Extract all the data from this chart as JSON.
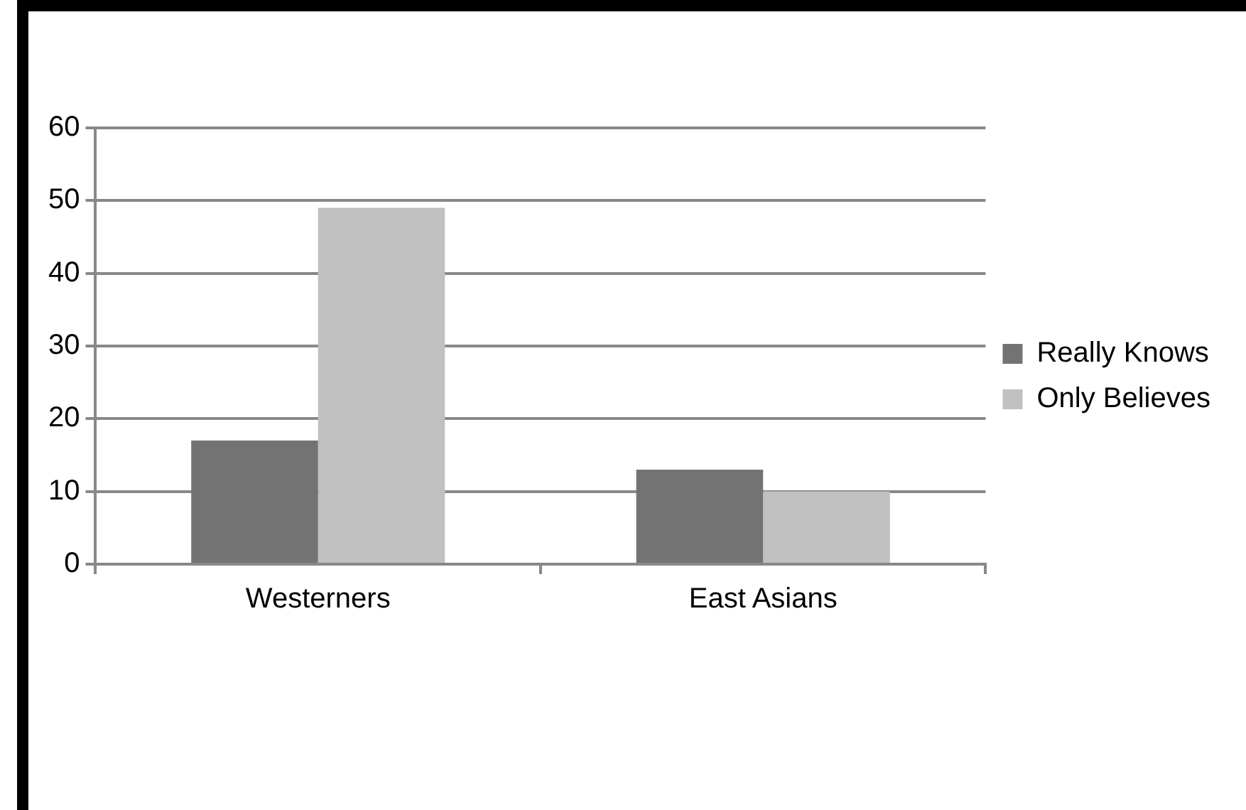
{
  "chart_data": {
    "type": "bar",
    "categories": [
      "Westerners",
      "East Asians"
    ],
    "series": [
      {
        "name": "Really Knows",
        "color": "#737373",
        "values": [
          17,
          13
        ]
      },
      {
        "name": "Only Believes",
        "color": "#c0c0c0",
        "values": [
          49,
          10
        ]
      }
    ],
    "ylim": [
      0,
      60
    ],
    "yticks": [
      0,
      10,
      20,
      30,
      40,
      50,
      60
    ],
    "grid": "y",
    "legend": "right"
  }
}
